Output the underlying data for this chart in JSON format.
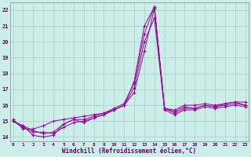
{
  "xlabel": "Windchill (Refroidissement éolien,°C)",
  "bg_color": "#cceee8",
  "grid_color": "#aacccc",
  "line_color": "#990099",
  "x_ticks": [
    0,
    1,
    2,
    3,
    4,
    5,
    6,
    7,
    8,
    9,
    10,
    11,
    12,
    13,
    14,
    15,
    16,
    17,
    18,
    19,
    20,
    21,
    22,
    23
  ],
  "y_ticks": [
    14,
    15,
    16,
    17,
    18,
    19,
    20,
    21,
    22
  ],
  "ylim": [
    13.7,
    22.5
  ],
  "xlim": [
    -0.3,
    23.3
  ],
  "curves": [
    [
      15.0,
      14.7,
      14.1,
      14.0,
      14.1,
      14.8,
      15.1,
      14.9,
      15.2,
      15.4,
      15.7,
      16.0,
      17.5,
      21.0,
      22.2,
      15.8,
      15.6,
      15.9,
      15.8,
      16.0,
      15.9,
      16.1,
      16.2,
      16.0
    ],
    [
      15.0,
      14.6,
      14.3,
      14.3,
      14.2,
      14.6,
      14.9,
      15.0,
      15.2,
      15.4,
      15.7,
      16.0,
      17.1,
      20.0,
      21.5,
      15.7,
      15.4,
      15.7,
      15.7,
      15.9,
      15.8,
      15.9,
      16.0,
      15.9
    ],
    [
      15.1,
      14.5,
      14.5,
      14.7,
      15.0,
      15.1,
      15.2,
      15.3,
      15.4,
      15.5,
      15.7,
      16.0,
      16.8,
      19.4,
      22.1,
      15.8,
      15.7,
      16.0,
      16.0,
      16.1,
      16.0,
      16.1,
      16.2,
      16.2
    ],
    [
      15.0,
      14.7,
      14.4,
      14.2,
      14.3,
      14.8,
      15.1,
      15.1,
      15.3,
      15.5,
      15.8,
      16.1,
      17.4,
      20.5,
      22.2,
      15.8,
      15.5,
      15.8,
      15.8,
      16.0,
      15.9,
      16.0,
      16.1,
      16.0
    ]
  ],
  "marker": "+",
  "figsize": [
    3.2,
    2.0
  ],
  "dpi": 100
}
